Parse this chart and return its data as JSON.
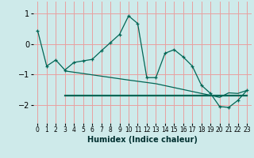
{
  "xlabel": "Humidex (Indice chaleur)",
  "background_color": "#ceeaea",
  "grid_color": "#e8a0a0",
  "line_color": "#006655",
  "xlim": [
    -0.5,
    23.5
  ],
  "ylim": [
    -2.6,
    1.4
  ],
  "yticks": [
    -2,
    -1,
    0,
    1
  ],
  "xticks": [
    0,
    1,
    2,
    3,
    4,
    5,
    6,
    7,
    8,
    9,
    10,
    11,
    12,
    13,
    14,
    15,
    16,
    17,
    18,
    19,
    20,
    21,
    22,
    23
  ],
  "curve1_x": [
    0,
    1,
    2,
    3,
    4,
    5,
    6,
    7,
    8,
    9,
    10,
    11,
    12,
    13,
    14,
    15,
    16,
    17,
    18,
    19,
    20,
    21,
    22,
    23
  ],
  "curve1_y": [
    0.45,
    -0.72,
    -0.52,
    -0.85,
    -0.6,
    -0.55,
    -0.5,
    -0.22,
    0.05,
    0.32,
    0.93,
    0.68,
    -1.1,
    -1.1,
    -0.3,
    -0.18,
    -0.42,
    -0.72,
    -1.35,
    -1.62,
    -2.05,
    -2.08,
    -1.85,
    -1.52
  ],
  "curve2_x": [
    3,
    10,
    13,
    18,
    19,
    20,
    21,
    22,
    23
  ],
  "curve2_y": [
    -0.88,
    -1.18,
    -1.3,
    -1.62,
    -1.68,
    -1.75,
    -1.6,
    -1.62,
    -1.52
  ],
  "curve3_x": [
    3,
    10,
    13,
    18,
    19,
    23
  ],
  "curve3_y": [
    -1.68,
    -1.68,
    -1.68,
    -1.68,
    -1.68,
    -1.68
  ]
}
